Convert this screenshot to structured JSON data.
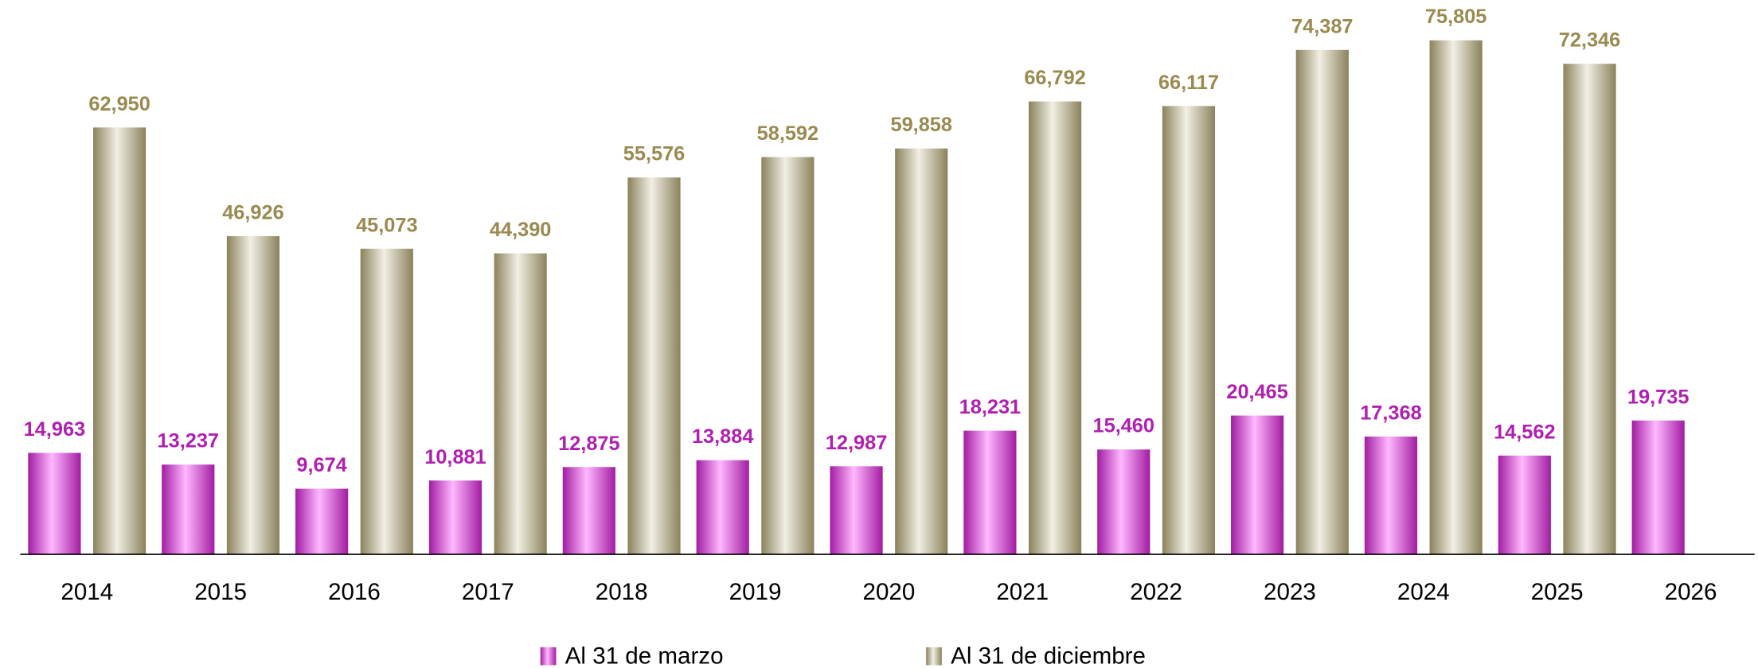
{
  "chart_data": {
    "type": "bar",
    "categories": [
      "2014",
      "2015",
      "2016",
      "2017",
      "2018",
      "2019",
      "2020",
      "2021",
      "2022",
      "2023",
      "2024",
      "2025",
      "2026"
    ],
    "series": [
      {
        "name": "Al 31 de marzo",
        "color": "#a21ca2",
        "label_color": "#b01fb0",
        "values": [
          14963,
          13237,
          9674,
          10881,
          12875,
          13884,
          12987,
          18231,
          15460,
          20465,
          17368,
          14562,
          19735
        ],
        "value_labels": [
          "14,963",
          "13,237",
          "9,674",
          "10,881",
          "12,875",
          "13,884",
          "12,987",
          "18,231",
          "15,460",
          "20,465",
          "17,368",
          "14,562",
          "19,735"
        ]
      },
      {
        "name": "Al 31 de diciembre",
        "color": "#8a825c",
        "label_color": "#9a8a50",
        "values": [
          62950,
          46926,
          45073,
          44390,
          55576,
          58592,
          59858,
          66792,
          66117,
          74387,
          75805,
          72346,
          null
        ],
        "value_labels": [
          "62,950",
          "46,926",
          "45,073",
          "44,390",
          "55,576",
          "58,592",
          "59,858",
          "66,792",
          "66,117",
          "74,387",
          "75,805",
          "72,346",
          null
        ]
      }
    ],
    "ylim": [
      0,
      80000
    ]
  }
}
